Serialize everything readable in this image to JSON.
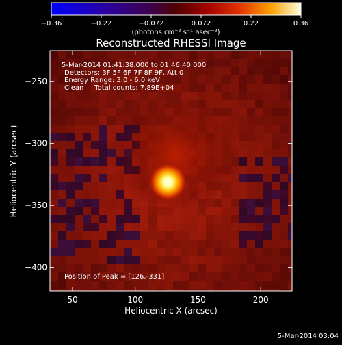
{
  "chart_data": {
    "type": "heatmap",
    "title": "Reconstructed RHESSI Image",
    "xlabel": "Heliocentric X (arcsec)",
    "ylabel": "Heliocentric Y (arcsec)",
    "xlim": [
      32,
      225
    ],
    "ylim": [
      -419,
      -225
    ],
    "x_ticks": [
      50,
      100,
      150,
      200
    ],
    "y_ticks": [
      -250,
      -300,
      -350,
      -400
    ],
    "annotations": [
      "5-Mar-2014 01:41:38.000 to 01:46:40.000",
      "Detectors: 3F 5F 6F 7F 8F 9F, Att 0",
      "Energy Range: 3.0 - 6.0 keV",
      "Clean     Total counts: 7.89E+04"
    ],
    "peak_label": "Position of Peak = [126,-331]",
    "peak": [
      126,
      -331
    ],
    "colorbar": {
      "ticks": [
        "-0.36",
        "-0.22",
        "-0.072",
        "0.072",
        "0.22",
        "0.36"
      ],
      "label": "(photons cm⁻² s⁻¹ asec⁻²)",
      "range": [
        -0.36,
        0.36
      ]
    },
    "footer": "5-Mar-2014 03:04"
  }
}
